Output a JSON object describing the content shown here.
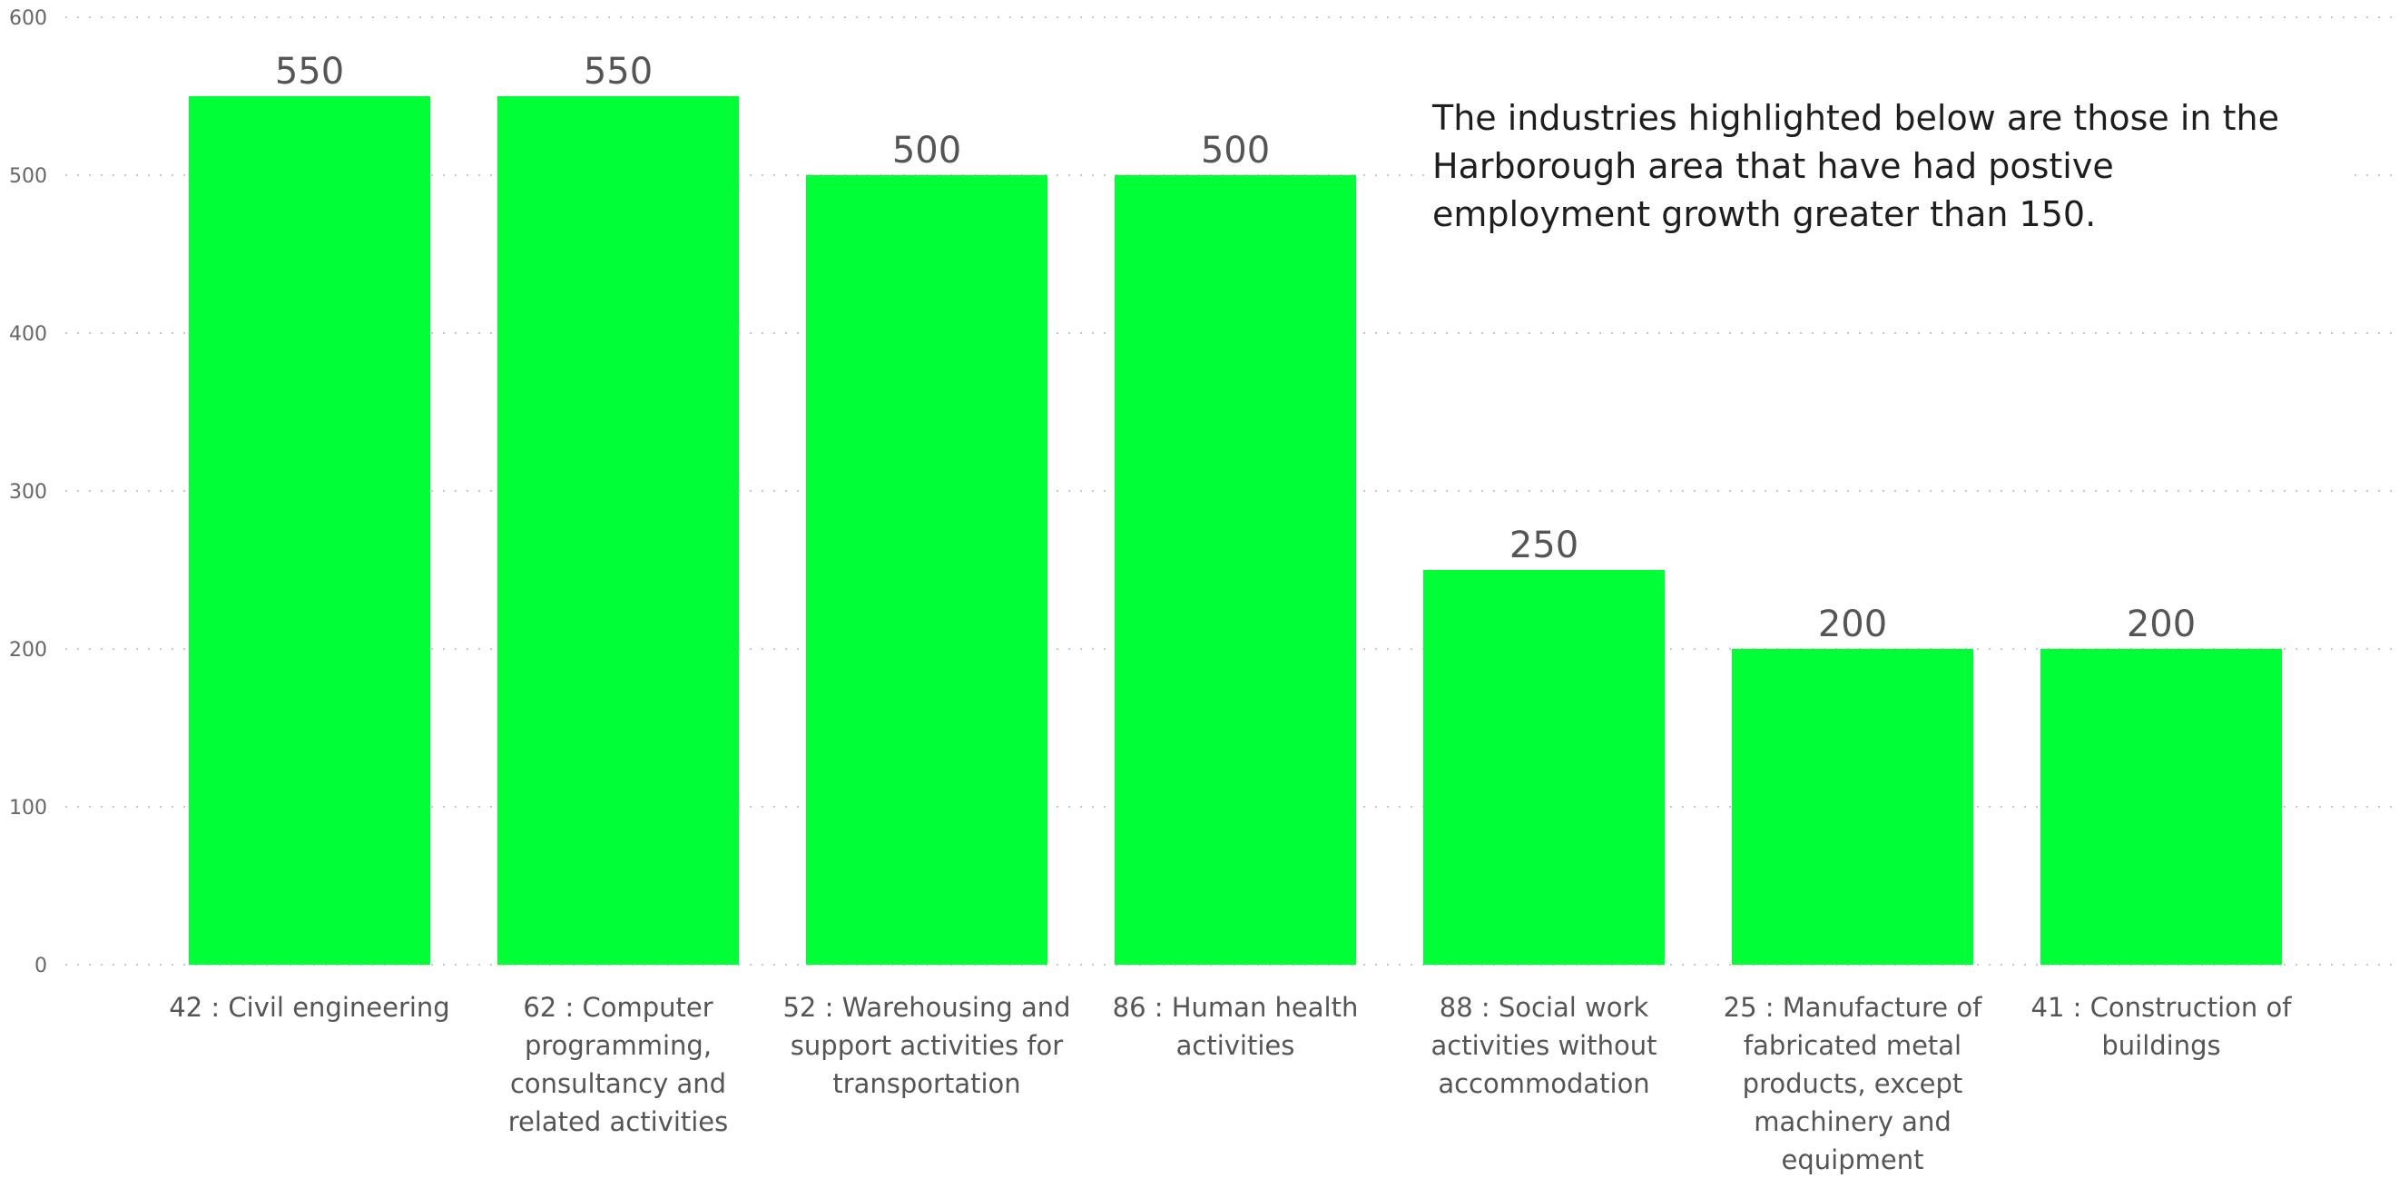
{
  "chart_data": {
    "type": "bar",
    "categories": [
      "42 : Civil engineering",
      "62 : Computer programming, consultancy and related activities",
      "52 : Warehousing and support activities for transportation",
      "86 : Human health activities",
      "88 : Social work activities without accommodation",
      "25 : Manufacture of fabricated metal products, except machinery and equipment",
      "41 : Construction of buildings"
    ],
    "category_lines": [
      [
        "42 : Civil engineering"
      ],
      [
        "62 : Computer",
        "programming,",
        "consultancy and",
        "related activities"
      ],
      [
        "52 : Warehousing and",
        "support activities for",
        "transportation"
      ],
      [
        "86 : Human health",
        "activities"
      ],
      [
        "88 : Social work",
        "activities without",
        "accommodation"
      ],
      [
        "25 : Manufacture of",
        "fabricated metal",
        "products, except",
        "machinery and",
        "equipment"
      ],
      [
        "41 : Construction of",
        "buildings"
      ]
    ],
    "values": [
      550,
      550,
      500,
      500,
      250,
      200,
      200
    ],
    "data_labels": [
      "550",
      "550",
      "500",
      "500",
      "250",
      "200",
      "200"
    ],
    "yticks": [
      "0",
      "100",
      "200",
      "300",
      "400",
      "500",
      "600"
    ],
    "ylim": [
      0,
      600
    ],
    "grid": true,
    "bar_color": "#00FF37",
    "title": "",
    "xlabel": "",
    "ylabel": "",
    "annotation": "The industries highlighted below are those in the Harborough area that have had postive employment growth greater than 150."
  }
}
